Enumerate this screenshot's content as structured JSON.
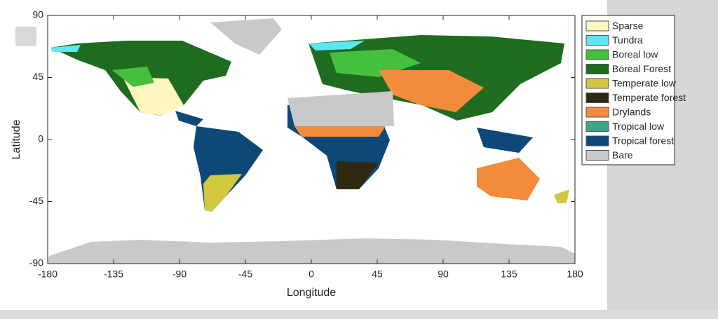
{
  "chart_data": {
    "type": "map",
    "xlabel": "Longitude",
    "ylabel": "Latitude",
    "xlim": [
      -180,
      180
    ],
    "ylim": [
      -90,
      90
    ],
    "xticks": [
      -180,
      -135,
      -90,
      -45,
      0,
      45,
      90,
      135,
      180
    ],
    "yticks": [
      -90,
      -45,
      0,
      45,
      90
    ],
    "legend": [
      {
        "name": "Sparse",
        "color": "#fff7bf"
      },
      {
        "name": "Tundra",
        "color": "#5ee6f2"
      },
      {
        "name": "Boreal low",
        "color": "#44c03c"
      },
      {
        "name": "Boreal Forest",
        "color": "#1f6b1f"
      },
      {
        "name": "Temperate low",
        "color": "#d1c840"
      },
      {
        "name": "Temperate forest",
        "color": "#2e2a12"
      },
      {
        "name": "Drylands",
        "color": "#f28c3c"
      },
      {
        "name": "Tropical low",
        "color": "#3aa68a"
      },
      {
        "name": "Tropical forest",
        "color": "#0d4878"
      },
      {
        "name": "Bare",
        "color": "#c9c9c9"
      }
    ]
  }
}
